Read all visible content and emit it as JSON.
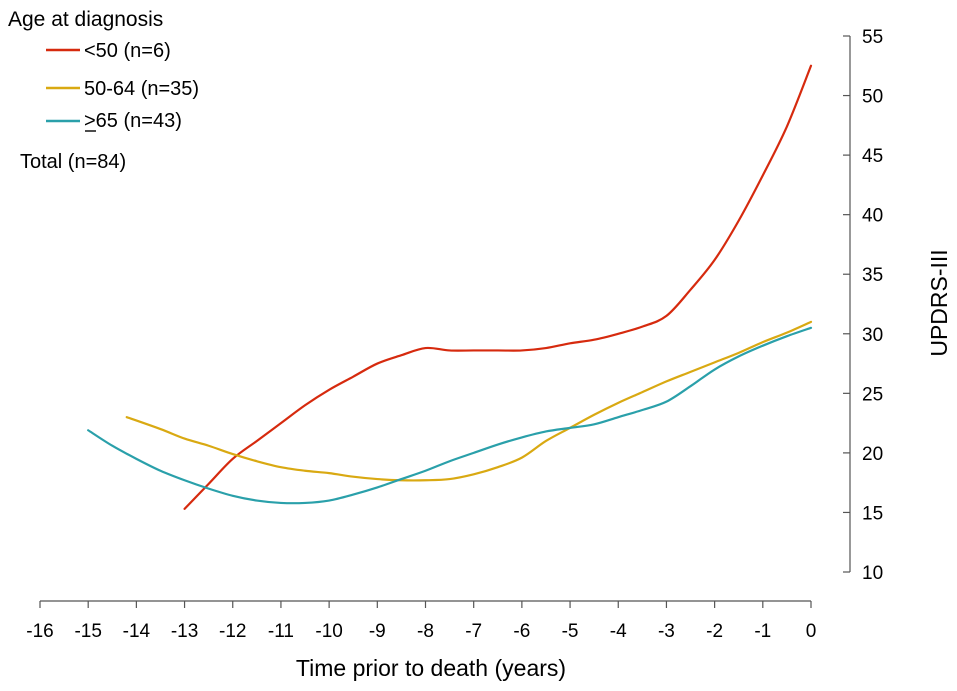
{
  "chart_data": {
    "type": "line",
    "title": "",
    "xlabel": "Time prior to death (years)",
    "ylabel": "UPDRS-III",
    "xlim": [
      -16,
      0
    ],
    "ylim": [
      10,
      55
    ],
    "x_ticks": [
      -16,
      -15,
      -14,
      -13,
      -12,
      -11,
      -10,
      -9,
      -8,
      -7,
      -6,
      -5,
      -4,
      -3,
      -2,
      -1,
      0
    ],
    "y_ticks": [
      10,
      15,
      20,
      25,
      30,
      35,
      40,
      45,
      50,
      55
    ],
    "legend": {
      "title": "Age at diagnosis",
      "placement": "top-left",
      "note": "Total (n=84)"
    },
    "series": [
      {
        "name": "<50 (n=6)",
        "color": "#d62a0e",
        "x": [
          -13,
          -12.5,
          -12,
          -11.5,
          -11,
          -10.5,
          -10,
          -9.5,
          -9,
          -8.5,
          -8,
          -7.5,
          -7,
          -6.5,
          -6,
          -5.5,
          -5,
          -4.5,
          -4,
          -3.5,
          -3,
          -2.5,
          -2,
          -1.5,
          -1,
          -0.5,
          0
        ],
        "y": [
          15.3,
          17.4,
          19.5,
          21.0,
          22.5,
          24.0,
          25.3,
          26.4,
          27.5,
          28.2,
          28.8,
          28.6,
          28.6,
          28.6,
          28.6,
          28.8,
          29.2,
          29.5,
          30.0,
          30.6,
          31.5,
          33.7,
          36.2,
          39.5,
          43.3,
          47.4,
          52.5
        ]
      },
      {
        "name": "50-64 (n=35)",
        "color": "#d9a912",
        "x": [
          -14.2,
          -13.5,
          -13,
          -12.5,
          -12,
          -11.5,
          -11,
          -10.5,
          -10,
          -9.5,
          -9,
          -8.5,
          -8,
          -7.5,
          -7,
          -6.5,
          -6,
          -5.5,
          -5,
          -4.5,
          -4,
          -3.5,
          -3,
          -2.5,
          -2,
          -1.5,
          -1,
          -0.5,
          0
        ],
        "y": [
          23.0,
          22.0,
          21.2,
          20.6,
          19.9,
          19.3,
          18.8,
          18.5,
          18.3,
          18.0,
          17.8,
          17.7,
          17.7,
          17.8,
          18.2,
          18.8,
          19.6,
          21.0,
          22.1,
          23.2,
          24.2,
          25.1,
          26.0,
          26.8,
          27.6,
          28.4,
          29.3,
          30.1,
          31.0
        ]
      },
      {
        "name": ">65 (n=43)",
        "color": "#2aa0aa",
        "x": [
          -15,
          -14.5,
          -14,
          -13.5,
          -13,
          -12.5,
          -12,
          -11.5,
          -11,
          -10.5,
          -10,
          -9.5,
          -9,
          -8.5,
          -8,
          -7.5,
          -7,
          -6.5,
          -6,
          -5.5,
          -5,
          -4.5,
          -4,
          -3.5,
          -3,
          -2.5,
          -2,
          -1.5,
          -1,
          -0.5,
          0
        ],
        "y": [
          21.9,
          20.6,
          19.5,
          18.5,
          17.7,
          17.0,
          16.4,
          16.0,
          15.8,
          15.8,
          16.0,
          16.5,
          17.1,
          17.8,
          18.5,
          19.3,
          20.0,
          20.7,
          21.3,
          21.8,
          22.1,
          22.4,
          23.0,
          23.6,
          24.3,
          25.6,
          27.0,
          28.1,
          29.0,
          29.8,
          30.5
        ]
      }
    ]
  }
}
